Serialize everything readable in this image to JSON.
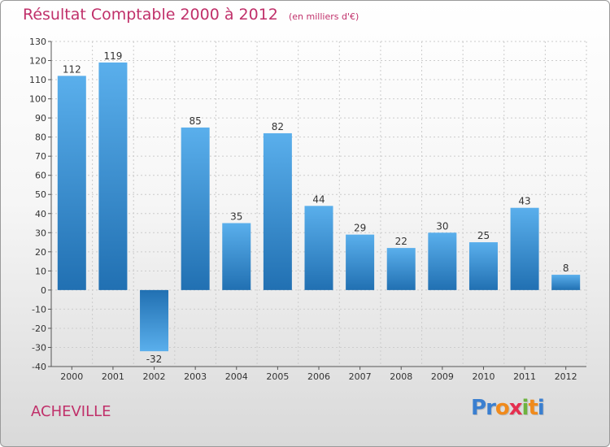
{
  "header": {
    "title": "Résultat Comptable 2000 à 2012",
    "subtitle": "(en milliers d'€)"
  },
  "footer": {
    "town": "ACHEVILLE",
    "brand_letters": [
      "P",
      "r",
      "o",
      "x",
      "i",
      "t",
      "i"
    ],
    "brand_colors": [
      "#3a7fd0",
      "#3a7fd0",
      "#f08a1c",
      "#e52f4f",
      "#6db33f",
      "#f08a1c",
      "#3a7fd0"
    ]
  },
  "chart_data": {
    "type": "bar",
    "title": "Résultat Comptable 2000 à 2012",
    "categories": [
      "2000",
      "2001",
      "2002",
      "2003",
      "2004",
      "2005",
      "2006",
      "2007",
      "2008",
      "2009",
      "2010",
      "2011",
      "2012"
    ],
    "values": [
      112,
      119,
      -32,
      85,
      35,
      82,
      44,
      29,
      22,
      30,
      25,
      43,
      8
    ],
    "ylim": [
      -40,
      130
    ],
    "yticks": [
      -40,
      -30,
      -20,
      -10,
      0,
      10,
      20,
      30,
      40,
      50,
      60,
      70,
      80,
      90,
      100,
      110,
      120,
      130
    ],
    "grid": true,
    "colors": {
      "bar_top": "#5aafec",
      "bar_bottom": "#2170b2",
      "title": "#c0306a"
    }
  }
}
